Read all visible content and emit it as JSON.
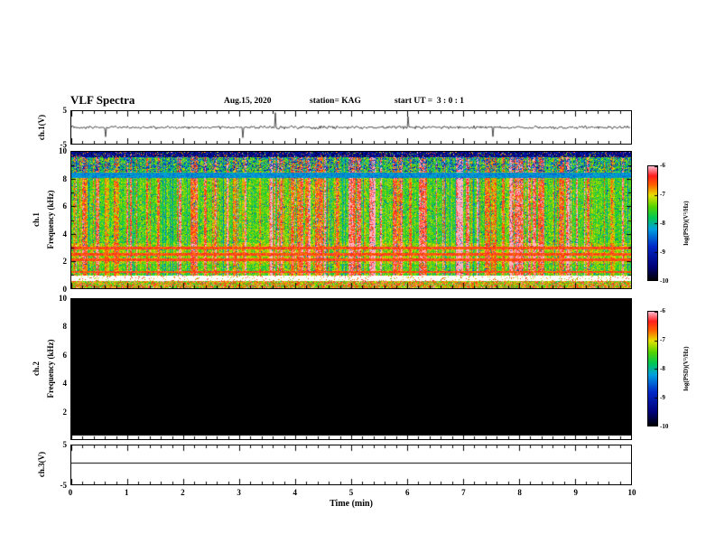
{
  "header": {
    "title": "VLF Spectra",
    "date": "Aug.15, 2020",
    "station": "station= KAG",
    "start_ut": "start UT =  3 : 0 : 1"
  },
  "x_axis": {
    "label": "Time (min)",
    "ticks": [
      0,
      1,
      2,
      3,
      4,
      5,
      6,
      7,
      8,
      9,
      10
    ]
  },
  "chart_data": [
    {
      "type": "line",
      "title": "ch.1 voltage time series",
      "ylabel": "ch.1(V)",
      "xlim": [
        0,
        10
      ],
      "ylim": [
        -5,
        5
      ],
      "y_ticks": [
        5,
        -5
      ],
      "description": "Noisy trace centered on 0 V with many short impulsive spikes reaching roughly ±2 to ±5 V across the full 10 minutes"
    },
    {
      "type": "heatmap",
      "title": "ch.1 VLF spectrogram",
      "group": "ch.1",
      "ylabel": "Frequency (kHz)",
      "xlim": [
        0,
        10
      ],
      "ylim": [
        0,
        10
      ],
      "y_ticks": [
        10,
        8,
        6,
        4,
        2,
        0
      ],
      "colorbar": {
        "label": "log(PSD)(V²/Hz)",
        "ticks": [
          -6,
          -7,
          -8,
          -9,
          -10
        ],
        "range": [
          -10,
          -6
        ]
      },
      "description": "Broadband noise: yellow-green background with dense vertical red sferic streaks, strong red horizontal bands near 1.2, 2.1, 2.5 and 3.0 kHz, a cyan-blue horizontal band near 8.3 kHz, dark navy speckle above 9.6 kHz, a white quiet gap near 0.6-0.9 kHz and a bright multicolor strip below 0.5 kHz"
    },
    {
      "type": "heatmap",
      "title": "ch.2 VLF spectrogram",
      "group": "ch.2",
      "ylabel": "Frequency (kHz)",
      "xlim": [
        0,
        10
      ],
      "ylim": [
        0,
        10
      ],
      "y_ticks": [
        10,
        8,
        6,
        4,
        2
      ],
      "colorbar": {
        "label": "log(PSD)(V²/Hz)",
        "ticks": [
          -6,
          -7,
          -8,
          -9,
          -10
        ],
        "range": [
          -10,
          -6
        ]
      },
      "description": "No signal: entire panel uniformly black (at or below -10 log PSD)"
    },
    {
      "type": "line",
      "title": "ch.3 voltage time series",
      "ylabel": "ch.3(V)",
      "xlim": [
        0,
        10
      ],
      "ylim": [
        -5,
        5
      ],
      "y_ticks": [
        5,
        -5
      ],
      "description": "Flat constant line slightly above 0 V for the whole interval"
    }
  ],
  "colors": {
    "background": "#ffffff",
    "axis": "#000000",
    "colormap_stops": [
      [
        0.0,
        "#000000"
      ],
      [
        0.12,
        "#000078"
      ],
      [
        0.3,
        "#0028c8"
      ],
      [
        0.45,
        "#00a0e0"
      ],
      [
        0.55,
        "#00c855"
      ],
      [
        0.65,
        "#55d400"
      ],
      [
        0.75,
        "#e8e000"
      ],
      [
        0.84,
        "#ff6000"
      ],
      [
        0.92,
        "#ff1e1e"
      ],
      [
        1.0,
        "#ffb4c8"
      ]
    ]
  },
  "render": {
    "seed": 42,
    "streak_probability": 0.2
  }
}
